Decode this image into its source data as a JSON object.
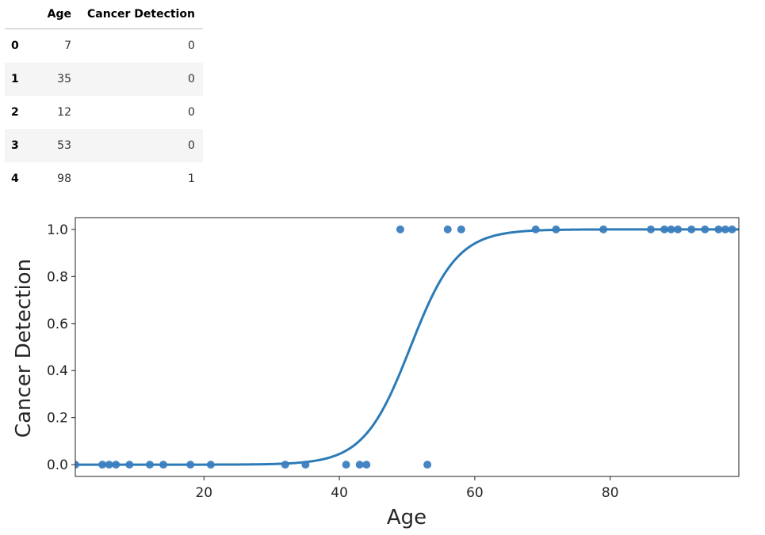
{
  "table": {
    "columns": [
      "",
      "Age",
      "Cancer Detection"
    ],
    "rows": [
      {
        "index": "0",
        "age": "7",
        "cancer_detection": "0"
      },
      {
        "index": "1",
        "age": "35",
        "cancer_detection": "0"
      },
      {
        "index": "2",
        "age": "12",
        "cancer_detection": "0"
      },
      {
        "index": "3",
        "age": "53",
        "cancer_detection": "0"
      },
      {
        "index": "4",
        "age": "98",
        "cancer_detection": "1"
      }
    ]
  },
  "chart_data": {
    "type": "scatter",
    "xlabel": "Age",
    "ylabel": "Cancer Detection",
    "xlim": [
      1,
      99
    ],
    "ylim": [
      -0.05,
      1.05
    ],
    "xticks": [
      20,
      40,
      60,
      80
    ],
    "yticks": [
      0.0,
      0.2,
      0.4,
      0.6,
      0.8,
      1.0
    ],
    "grid": false,
    "colors": {
      "points": "#3a7ebf",
      "curve": "#2c7bb6"
    },
    "points": [
      {
        "x": 1,
        "y": 0
      },
      {
        "x": 5,
        "y": 0
      },
      {
        "x": 6,
        "y": 0
      },
      {
        "x": 7,
        "y": 0
      },
      {
        "x": 9,
        "y": 0
      },
      {
        "x": 12,
        "y": 0
      },
      {
        "x": 14,
        "y": 0
      },
      {
        "x": 18,
        "y": 0
      },
      {
        "x": 21,
        "y": 0
      },
      {
        "x": 32,
        "y": 0
      },
      {
        "x": 35,
        "y": 0
      },
      {
        "x": 41,
        "y": 0
      },
      {
        "x": 43,
        "y": 0
      },
      {
        "x": 44,
        "y": 0
      },
      {
        "x": 53,
        "y": 0
      },
      {
        "x": 49,
        "y": 1
      },
      {
        "x": 56,
        "y": 1
      },
      {
        "x": 58,
        "y": 1
      },
      {
        "x": 69,
        "y": 1
      },
      {
        "x": 72,
        "y": 1
      },
      {
        "x": 79,
        "y": 1
      },
      {
        "x": 86,
        "y": 1
      },
      {
        "x": 88,
        "y": 1
      },
      {
        "x": 89,
        "y": 1
      },
      {
        "x": 90,
        "y": 1
      },
      {
        "x": 92,
        "y": 1
      },
      {
        "x": 94,
        "y": 1
      },
      {
        "x": 96,
        "y": 1
      },
      {
        "x": 97,
        "y": 1
      },
      {
        "x": 98,
        "y": 1
      }
    ],
    "fit": {
      "type": "logistic",
      "midpoint": 50.5,
      "slope": 0.29
    }
  }
}
